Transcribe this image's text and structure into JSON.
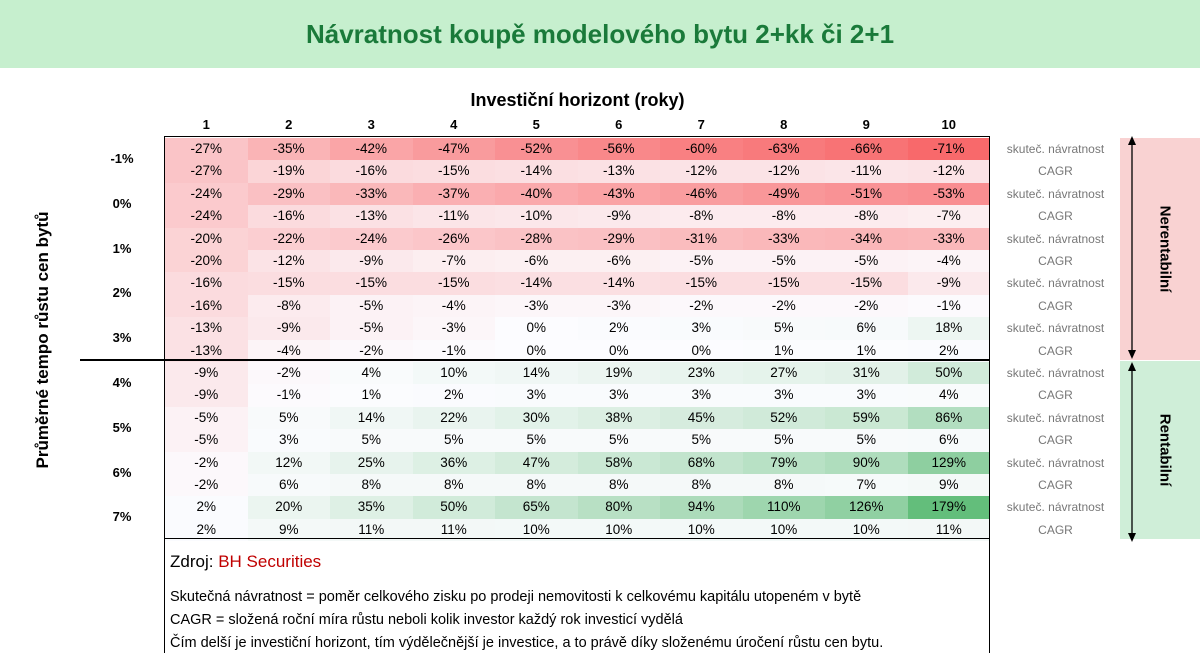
{
  "title": "Návratnost koupě modelového bytu 2+kk či 2+1",
  "chart_data": {
    "type": "table",
    "title": "Návratnost koupě modelového bytu 2+kk či 2+1",
    "xlabel": "Investiční horizont (roky)",
    "ylabel": "Průměrné tempo růstu cen bytů",
    "columns": [
      "1",
      "2",
      "3",
      "4",
      "5",
      "6",
      "7",
      "8",
      "9",
      "10"
    ],
    "row_labels": [
      "-1%",
      "0%",
      "1%",
      "2%",
      "3%",
      "4%",
      "5%",
      "6%",
      "7%"
    ],
    "metric_labels": [
      "skuteč. návratnost",
      "CAGR"
    ],
    "rows": [
      {
        "label": "-1%",
        "return": [
          -27,
          -35,
          -42,
          -47,
          -52,
          -56,
          -60,
          -63,
          -66,
          -71
        ],
        "cagr": [
          -27,
          -19,
          -16,
          -15,
          -14,
          -13,
          -12,
          -12,
          -11,
          -12
        ]
      },
      {
        "label": "0%",
        "return": [
          -24,
          -29,
          -33,
          -37,
          -40,
          -43,
          -46,
          -49,
          -51,
          -53
        ],
        "cagr": [
          -24,
          -16,
          -13,
          -11,
          -10,
          -9,
          -8,
          -8,
          -8,
          -7
        ]
      },
      {
        "label": "1%",
        "return": [
          -20,
          -22,
          -24,
          -26,
          -28,
          -29,
          -31,
          -33,
          -34,
          -33
        ],
        "cagr": [
          -20,
          -12,
          -9,
          -7,
          -6,
          -6,
          -5,
          -5,
          -5,
          -4
        ]
      },
      {
        "label": "2%",
        "return": [
          -16,
          -15,
          -15,
          -15,
          -14,
          -14,
          -15,
          -15,
          -15,
          -9
        ],
        "cagr": [
          -16,
          -8,
          -5,
          -4,
          -3,
          -3,
          -2,
          -2,
          -2,
          -1
        ]
      },
      {
        "label": "3%",
        "return": [
          -13,
          -9,
          -5,
          -3,
          0,
          2,
          3,
          5,
          6,
          18
        ],
        "cagr": [
          -13,
          -4,
          -2,
          -1,
          0,
          0,
          0,
          1,
          1,
          2
        ]
      },
      {
        "label": "4%",
        "return": [
          -9,
          -2,
          4,
          10,
          14,
          19,
          23,
          27,
          31,
          50
        ],
        "cagr": [
          -9,
          -1,
          1,
          2,
          3,
          3,
          3,
          3,
          3,
          4
        ]
      },
      {
        "label": "5%",
        "return": [
          -5,
          5,
          14,
          22,
          30,
          38,
          45,
          52,
          59,
          86
        ],
        "cagr": [
          -5,
          3,
          5,
          5,
          5,
          5,
          5,
          5,
          5,
          6
        ]
      },
      {
        "label": "6%",
        "return": [
          -2,
          12,
          25,
          36,
          47,
          58,
          68,
          79,
          90,
          129
        ],
        "cagr": [
          -2,
          6,
          8,
          8,
          8,
          8,
          8,
          8,
          7,
          9
        ]
      },
      {
        "label": "7%",
        "return": [
          2,
          20,
          35,
          50,
          65,
          80,
          94,
          110,
          126,
          179
        ],
        "cagr": [
          2,
          9,
          11,
          11,
          10,
          10,
          10,
          10,
          10,
          11
        ]
      }
    ],
    "bands": [
      "Nerentabilní",
      "Rentabilní"
    ]
  },
  "source": {
    "label": "Zdroj:",
    "value": "BH Securities"
  },
  "notes": [
    "Skutečná návratnost = poměr celkového zisku po prodeji nemovitosti k celkovému kapitálu utopeném v bytě",
    "CAGR = složená roční míra růstu neboli kolik investor každý rok investicí vydělá",
    "Čím delší je investiční horizont, tím výdělečnější je investice, a to právě díky složenému úročení růstu cen bytu."
  ],
  "colors": {
    "negative": "#f8696b",
    "positive": "#63be7b",
    "title": "#1a7a3a",
    "source": "#c00000"
  }
}
